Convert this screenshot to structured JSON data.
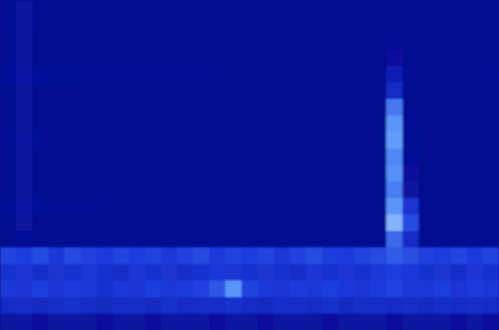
{
  "chart_data": {
    "type": "heatmap",
    "tick_labels": false,
    "zlim": [
      0,
      100
    ],
    "cells": [
      [
        7,
        14,
        7,
        6,
        5,
        5,
        5,
        5,
        5,
        5,
        5,
        5,
        5,
        5,
        5,
        5,
        5,
        5,
        5,
        5,
        5,
        5,
        5,
        5,
        5,
        5,
        5,
        5,
        5,
        5,
        6
      ],
      [
        8,
        14,
        7,
        6,
        5,
        5,
        5,
        5,
        5,
        5,
        5,
        5,
        5,
        5,
        5,
        5,
        5,
        5,
        5,
        5,
        5,
        5,
        5,
        5,
        6,
        5,
        5,
        5,
        5,
        5,
        6
      ],
      [
        7,
        14,
        6,
        5,
        5,
        5,
        5,
        5,
        5,
        5,
        5,
        5,
        5,
        5,
        5,
        5,
        5,
        5,
        5,
        5,
        5,
        5,
        5,
        5,
        8,
        5,
        5,
        5,
        5,
        5,
        5
      ],
      [
        7,
        14,
        6,
        5,
        5,
        5,
        5,
        5,
        5,
        5,
        5,
        5,
        5,
        5,
        5,
        5,
        5,
        5,
        5,
        5,
        5,
        5,
        5,
        5,
        12,
        5,
        5,
        5,
        5,
        5,
        5
      ],
      [
        10,
        16,
        10,
        9,
        9,
        8,
        8,
        8,
        8,
        8,
        8,
        8,
        8,
        7,
        7,
        7,
        7,
        7,
        7,
        6,
        6,
        6,
        6,
        7,
        22,
        8,
        6,
        6,
        6,
        7,
        8
      ],
      [
        6,
        14,
        6,
        5,
        5,
        5,
        5,
        5,
        5,
        5,
        5,
        5,
        5,
        5,
        5,
        5,
        5,
        5,
        5,
        5,
        5,
        5,
        5,
        5,
        30,
        6,
        5,
        5,
        5,
        5,
        5
      ],
      [
        6,
        14,
        6,
        5,
        5,
        5,
        5,
        5,
        5,
        5,
        5,
        5,
        5,
        5,
        5,
        5,
        5,
        5,
        5,
        5,
        5,
        5,
        5,
        5,
        60,
        7,
        5,
        5,
        5,
        5,
        5
      ],
      [
        6,
        14,
        6,
        5,
        5,
        5,
        5,
        5,
        5,
        5,
        5,
        5,
        5,
        5,
        5,
        5,
        5,
        5,
        5,
        5,
        5,
        5,
        5,
        5,
        70,
        8,
        5,
        5,
        5,
        5,
        5
      ],
      [
        8,
        15,
        8,
        7,
        7,
        7,
        6,
        6,
        6,
        6,
        6,
        6,
        6,
        6,
        6,
        6,
        6,
        6,
        6,
        6,
        6,
        6,
        6,
        6,
        72,
        9,
        6,
        6,
        5,
        5,
        6
      ],
      [
        6,
        14,
        6,
        5,
        5,
        5,
        5,
        5,
        5,
        5,
        5,
        5,
        5,
        5,
        5,
        5,
        5,
        5,
        5,
        5,
        5,
        5,
        5,
        5,
        65,
        10,
        5,
        5,
        5,
        5,
        5
      ],
      [
        6,
        14,
        6,
        5,
        5,
        5,
        5,
        5,
        5,
        5,
        5,
        5,
        5,
        5,
        5,
        5,
        5,
        5,
        5,
        5,
        5,
        5,
        5,
        5,
        68,
        12,
        5,
        5,
        5,
        5,
        5
      ],
      [
        6,
        14,
        6,
        5,
        5,
        5,
        5,
        5,
        5,
        5,
        5,
        5,
        5,
        5,
        5,
        5,
        5,
        5,
        5,
        5,
        5,
        5,
        5,
        5,
        62,
        14,
        5,
        5,
        5,
        5,
        5
      ],
      [
        9,
        16,
        9,
        8,
        8,
        8,
        7,
        7,
        7,
        7,
        7,
        7,
        7,
        6,
        6,
        6,
        6,
        6,
        6,
        6,
        6,
        6,
        6,
        7,
        70,
        35,
        7,
        6,
        6,
        6,
        7
      ],
      [
        6,
        14,
        6,
        5,
        5,
        5,
        5,
        5,
        5,
        5,
        5,
        5,
        5,
        5,
        5,
        5,
        5,
        5,
        5,
        5,
        5,
        5,
        5,
        5,
        80,
        45,
        6,
        5,
        5,
        5,
        5
      ],
      [
        6,
        10,
        6,
        5,
        5,
        5,
        5,
        5,
        5,
        5,
        5,
        5,
        5,
        5,
        5,
        5,
        5,
        5,
        5,
        5,
        5,
        5,
        5,
        6,
        55,
        30,
        6,
        5,
        5,
        5,
        6
      ],
      [
        42,
        40,
        45,
        38,
        44,
        41,
        39,
        43,
        40,
        42,
        38,
        41,
        44,
        39,
        42,
        40,
        43,
        38,
        41,
        45,
        40,
        39,
        42,
        44,
        50,
        46,
        41,
        40,
        43,
        39,
        42
      ],
      [
        34,
        36,
        32,
        35,
        33,
        37,
        34,
        31,
        36,
        33,
        35,
        32,
        34,
        38,
        36,
        33,
        35,
        34,
        32,
        36,
        33,
        35,
        34,
        37,
        40,
        38,
        33,
        35,
        32,
        36,
        34
      ],
      [
        38,
        35,
        40,
        36,
        39,
        37,
        34,
        38,
        36,
        40,
        37,
        39,
        41,
        48,
        70,
        42,
        38,
        36,
        39,
        37,
        40,
        38,
        36,
        39,
        41,
        37,
        38,
        40,
        36,
        39,
        37
      ],
      [
        30,
        32,
        29,
        31,
        33,
        30,
        28,
        32,
        31,
        29,
        33,
        30,
        32,
        31,
        34,
        30,
        29,
        32,
        31,
        30,
        33,
        29,
        31,
        32,
        30,
        31,
        29,
        32,
        30,
        31,
        30
      ],
      [
        14,
        15,
        13,
        14,
        15,
        14,
        13,
        15,
        14,
        13,
        14,
        15,
        14,
        13,
        15,
        14,
        13,
        14,
        15,
        14,
        13,
        14,
        15,
        14,
        13,
        14,
        15,
        14,
        13,
        14,
        13
      ]
    ]
  }
}
